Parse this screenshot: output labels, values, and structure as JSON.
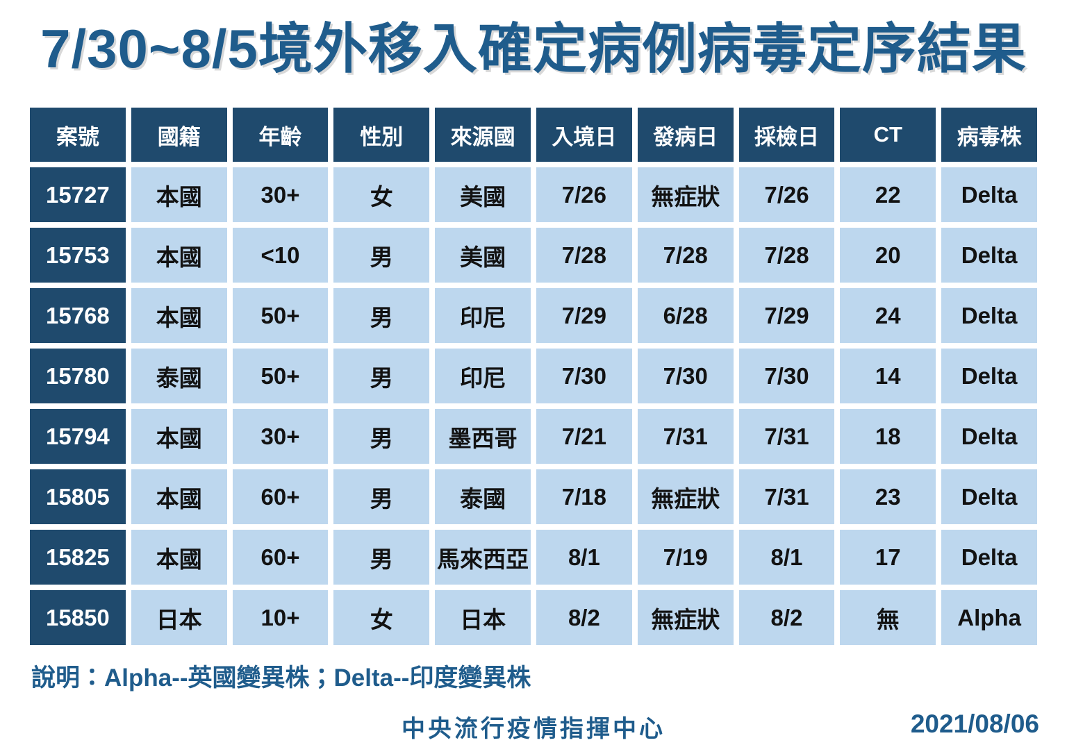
{
  "title": "7/30~8/5境外移入確定病例病毒定序結果",
  "chart_data": {
    "type": "table",
    "title": "7/30~8/5境外移入確定病例病毒定序結果",
    "columns": [
      "案號",
      "國籍",
      "年齡",
      "性別",
      "來源國",
      "入境日",
      "發病日",
      "採檢日",
      "CT",
      "病毒株"
    ],
    "rows": [
      [
        "15727",
        "本國",
        "30+",
        "女",
        "美國",
        "7/26",
        "無症狀",
        "7/26",
        "22",
        "Delta"
      ],
      [
        "15753",
        "本國",
        "<10",
        "男",
        "美國",
        "7/28",
        "7/28",
        "7/28",
        "20",
        "Delta"
      ],
      [
        "15768",
        "本國",
        "50+",
        "男",
        "印尼",
        "7/29",
        "6/28",
        "7/29",
        "24",
        "Delta"
      ],
      [
        "15780",
        "泰國",
        "50+",
        "男",
        "印尼",
        "7/30",
        "7/30",
        "7/30",
        "14",
        "Delta"
      ],
      [
        "15794",
        "本國",
        "30+",
        "男",
        "墨西哥",
        "7/21",
        "7/31",
        "7/31",
        "18",
        "Delta"
      ],
      [
        "15805",
        "本國",
        "60+",
        "男",
        "泰國",
        "7/18",
        "無症狀",
        "7/31",
        "23",
        "Delta"
      ],
      [
        "15825",
        "本國",
        "60+",
        "男",
        "馬來西亞",
        "8/1",
        "7/19",
        "8/1",
        "17",
        "Delta"
      ],
      [
        "15850",
        "日本",
        "10+",
        "女",
        "日本",
        "8/2",
        "無症狀",
        "8/2",
        "無",
        "Alpha"
      ]
    ],
    "note": "說明：Alpha--英國變異株；Delta--印度變異株",
    "source": "中央流行疫情指揮中心",
    "date": "2021/08/06"
  },
  "colors": {
    "header_dark_blue": "#1F4A6D",
    "cell_light_blue": "#BDD7EE",
    "text_title_blue": "#1F5C8C",
    "cell_text_black": "#121212",
    "background": "#FFFFFF"
  }
}
